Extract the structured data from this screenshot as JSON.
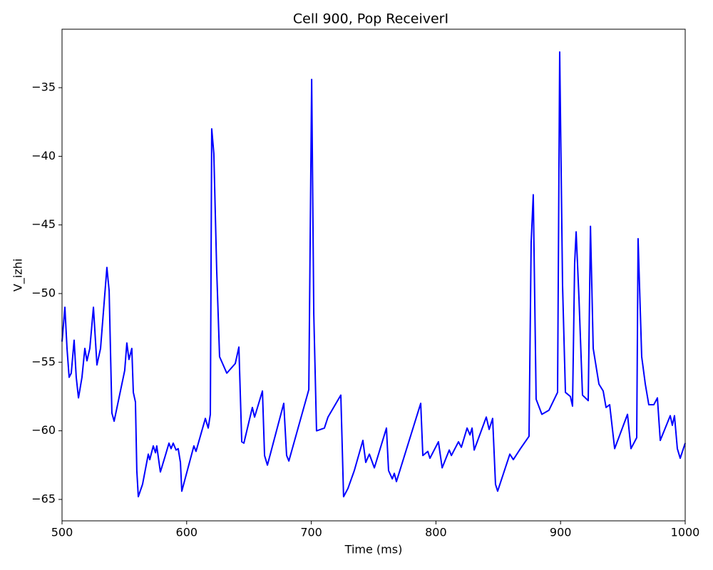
{
  "chart_data": {
    "type": "line",
    "title": "Cell 900, Pop ReceiverI",
    "xlabel": "Time (ms)",
    "ylabel": "V_izhi",
    "xlim": [
      500,
      1000
    ],
    "ylim": [
      -66.56,
      -30.74
    ],
    "xticks": [
      500,
      600,
      700,
      800,
      900,
      1000
    ],
    "yticks": [
      {
        "value": -65,
        "label": "−65"
      },
      {
        "value": -60,
        "label": "−60"
      },
      {
        "value": -55,
        "label": "−55"
      },
      {
        "value": -50,
        "label": "−50"
      },
      {
        "value": -45,
        "label": "−45"
      },
      {
        "value": -40,
        "label": "−40"
      },
      {
        "value": -35,
        "label": "−35"
      }
    ],
    "x": [
      500,
      502.3,
      504,
      505.7,
      507.4,
      509.7,
      511.4,
      513.2,
      516,
      518.3,
      520,
      522.3,
      525.2,
      528,
      530.9,
      536,
      537.8,
      540,
      541.8,
      550.3,
      552,
      553.7,
      556,
      557.2,
      558.9,
      560,
      561.2,
      564.6,
      569.2,
      570.4,
      573.2,
      575,
      576,
      578.9,
      582.9,
      585.8,
      587.5,
      589.2,
      591.5,
      593.2,
      595,
      596.1,
      605.8,
      607.5,
      615,
      617.3,
      619,
      620.1,
      621.8,
      624.1,
      626.4,
      632.2,
      639,
      641.9,
      644.2,
      645.9,
      652.7,
      654.5,
      660.8,
      662.5,
      664.8,
      677.9,
      680.2,
      682,
      698,
      700.3,
      702,
      704.2,
      710.5,
      713.4,
      723.7,
      725.9,
      729.4,
      734.5,
      741.4,
      743.7,
      746.6,
      750.6,
      760.3,
      762,
      765,
      766.6,
      768.3,
      787.8,
      789.5,
      793.5,
      795.2,
      802,
      805,
      810.7,
      812.4,
      818.1,
      820.4,
      825,
      827.3,
      829,
      830.7,
      840.4,
      842.7,
      845.5,
      847.8,
      849.5,
      859.3,
      862.1,
      867.8,
      874.7,
      876.4,
      878.1,
      880.4,
      885,
      890.7,
      897.6,
      899.3,
      901.6,
      903.9,
      907.9,
      909.6,
      911.3,
      912.5,
      914.8,
      917.6,
      922.2,
      924,
      926.2,
      930.8,
      934.2,
      936.5,
      939.4,
      943.4,
      953.7,
      956.5,
      961.1,
      962.2,
      965.1,
      968,
      970.8,
      974.8,
      977.7,
      980,
      988,
      989.7,
      991.4,
      993.7,
      996,
      1000
    ],
    "series": [
      {
        "name": "V_izhi",
        "color": "#0000ff",
        "values": [
          -53.5,
          -51.0,
          -54.0,
          -56.1,
          -55.8,
          -53.4,
          -56.1,
          -57.6,
          -56.1,
          -54.0,
          -54.9,
          -54.0,
          -51.0,
          -55.2,
          -54.0,
          -48.1,
          -49.8,
          -58.7,
          -59.3,
          -55.6,
          -53.6,
          -54.8,
          -54.0,
          -57.2,
          -57.9,
          -62.9,
          -64.8,
          -63.9,
          -61.7,
          -62.1,
          -61.1,
          -61.6,
          -61.1,
          -63.0,
          -61.8,
          -60.9,
          -61.3,
          -60.9,
          -61.4,
          -61.3,
          -62.3,
          -64.4,
          -61.1,
          -61.5,
          -59.1,
          -59.8,
          -58.8,
          -38.0,
          -39.8,
          -48.3,
          -54.6,
          -55.8,
          -55.1,
          -53.9,
          -60.8,
          -60.9,
          -58.3,
          -59.0,
          -57.1,
          -61.8,
          -62.5,
          -58.0,
          -61.8,
          -62.2,
          -57.0,
          -34.4,
          -51.5,
          -60.0,
          -59.8,
          -59.0,
          -57.4,
          -64.8,
          -64.2,
          -62.9,
          -60.7,
          -62.3,
          -61.7,
          -62.7,
          -59.8,
          -62.9,
          -63.5,
          -63.1,
          -63.7,
          -58.0,
          -61.8,
          -61.5,
          -62.0,
          -60.8,
          -62.7,
          -61.4,
          -61.8,
          -60.8,
          -61.2,
          -59.8,
          -60.3,
          -59.8,
          -61.4,
          -59.0,
          -59.9,
          -59.1,
          -63.9,
          -64.4,
          -61.7,
          -62.1,
          -61.3,
          -60.4,
          -46.3,
          -42.8,
          -57.7,
          -58.8,
          -58.5,
          -57.2,
          -32.4,
          -49.4,
          -57.2,
          -57.5,
          -58.2,
          -47.8,
          -45.5,
          -50.4,
          -57.4,
          -57.8,
          -45.1,
          -54.0,
          -56.6,
          -57.1,
          -58.3,
          -58.1,
          -61.3,
          -58.8,
          -61.3,
          -60.5,
          -46.0,
          -54.6,
          -56.6,
          -58.1,
          -58.1,
          -57.6,
          -60.7,
          -58.9,
          -59.6,
          -58.9,
          -61.3,
          -62.0,
          -60.9
        ]
      }
    ]
  }
}
